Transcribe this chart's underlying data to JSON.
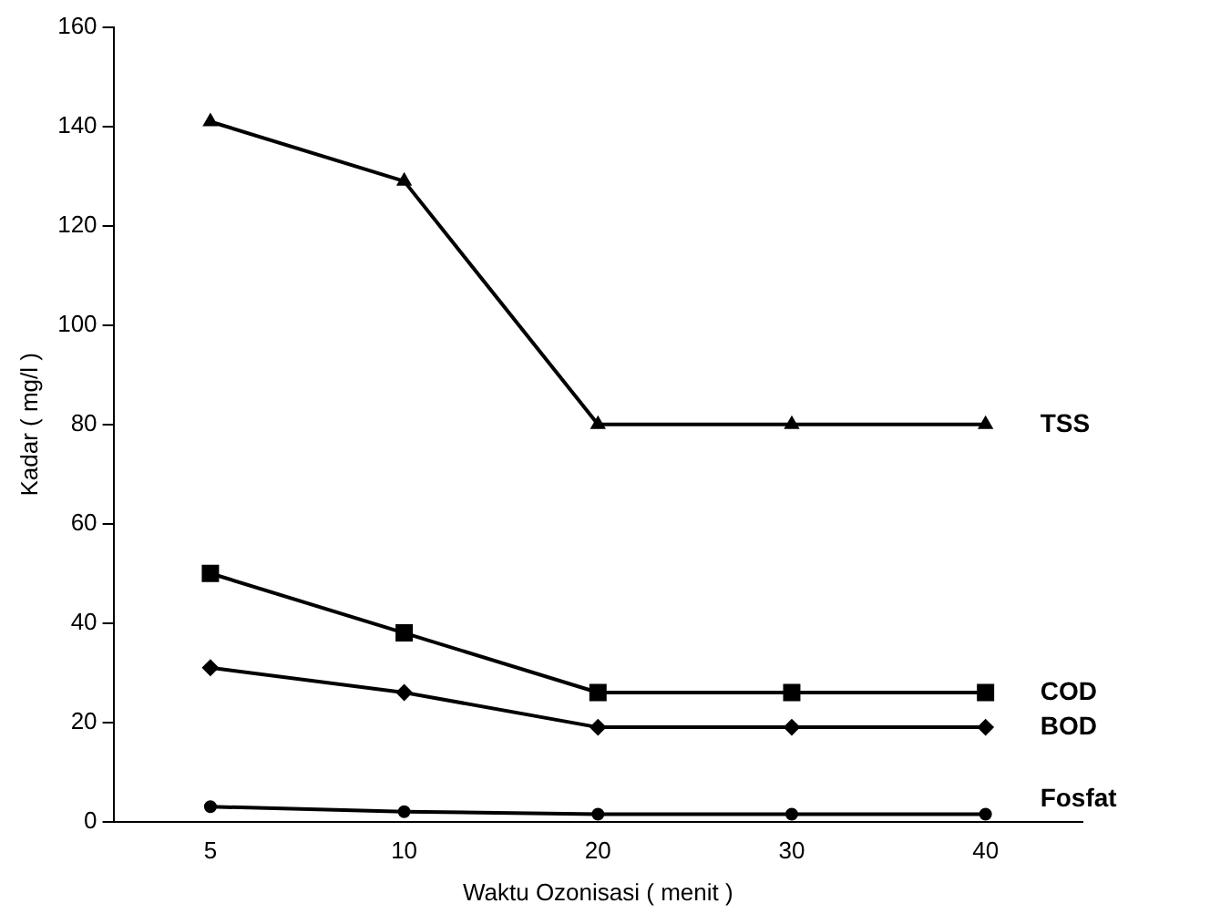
{
  "chart_data": {
    "type": "line",
    "xlabel": "Waktu Ozonisasi ( menit )",
    "ylabel": "Kadar ( mg/l )",
    "categories": [
      "5",
      "10",
      "20",
      "30",
      "40"
    ],
    "series": [
      {
        "name": "TSS",
        "color": "#000000",
        "marker": "triangle",
        "values": [
          141,
          129,
          80,
          80,
          80
        ]
      },
      {
        "name": "COD",
        "color": "#000000",
        "marker": "square",
        "values": [
          50,
          38,
          26,
          26,
          26
        ]
      },
      {
        "name": "BOD",
        "color": "#000000",
        "marker": "diamond",
        "values": [
          31,
          26,
          19,
          19,
          19
        ]
      },
      {
        "name": "Fosfat",
        "color": "#000000",
        "marker": "circle",
        "values": [
          3,
          2,
          1.5,
          1.5,
          1.5
        ]
      }
    ],
    "ylim": [
      0,
      160
    ],
    "yticks": [
      0,
      20,
      40,
      60,
      80,
      100,
      120,
      140,
      160
    ],
    "grid": false,
    "legend": false,
    "line_style": "solid"
  }
}
